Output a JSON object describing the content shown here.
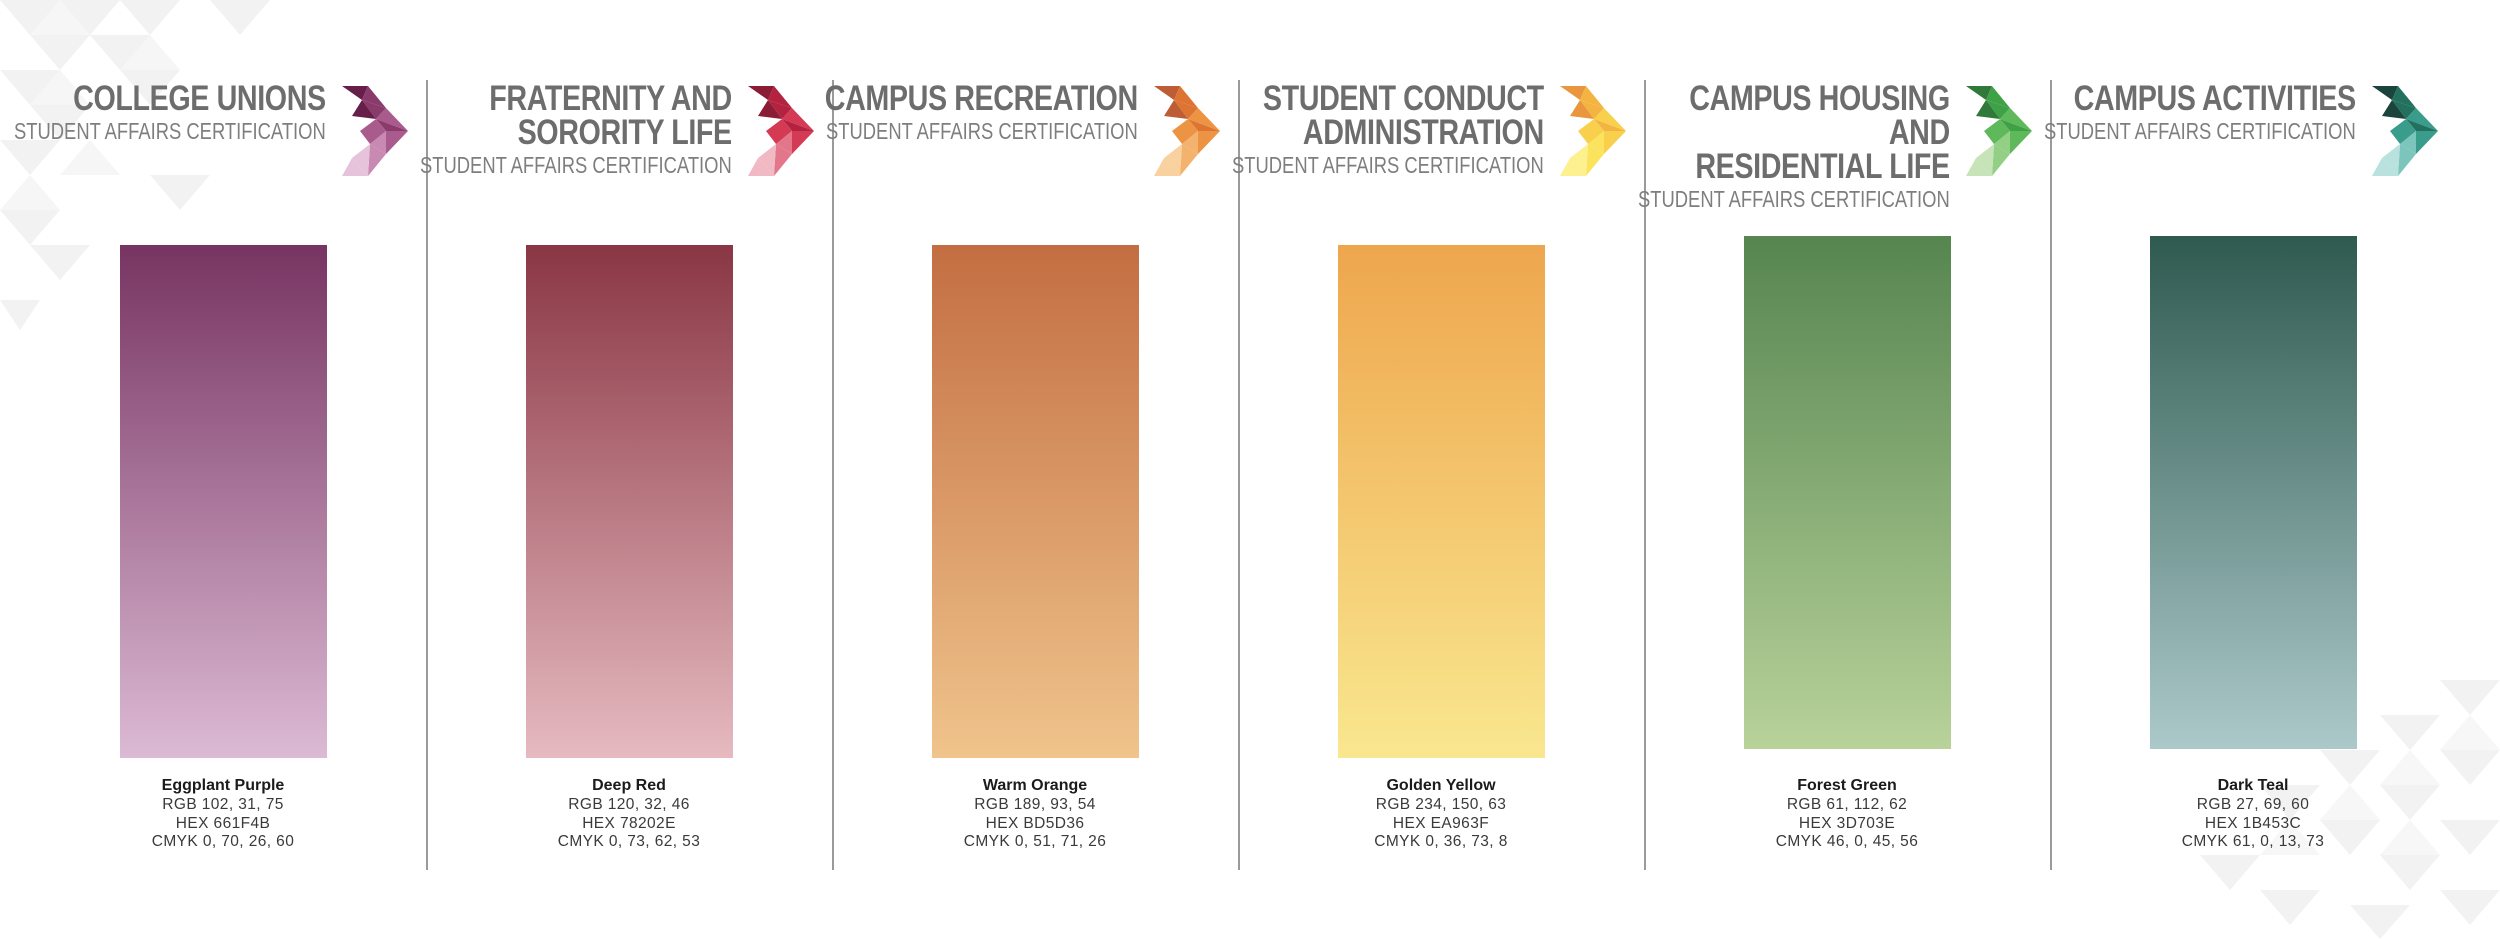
{
  "panels": [
    {
      "title": "COLLEGE UNIONS",
      "subtitle": "STUDENT AFFAIRS CERTIFICATION",
      "chevron_colors": [
        "#661f4b",
        "#8a3a6b",
        "#a85b8c",
        "#c889b2",
        "#e7c3db"
      ],
      "gradient": [
        "#773462",
        "#dcbad4"
      ],
      "color_name": "Eggplant Purple",
      "rgb": "RGB 102, 31, 75",
      "hex": "HEX 661F4B",
      "cmyk": "CMYK 0, 70, 26, 60"
    },
    {
      "title": "FRATERNITY AND\nSORORITY LIFE",
      "subtitle": "STUDENT AFFAIRS CERTIFICATION",
      "chevron_colors": [
        "#8a1c35",
        "#b3223f",
        "#d53a55",
        "#e3768a",
        "#f1b9c3"
      ],
      "gradient": [
        "#8a3644",
        "#e6bac0"
      ],
      "color_name": "Deep Red",
      "rgb": "RGB 120, 32, 46",
      "hex": "HEX 78202E",
      "cmyk": "CMYK 0, 73, 62, 53"
    },
    {
      "title": "CAMPUS RECREATION",
      "subtitle": "STUDENT AFFAIRS CERTIFICATION",
      "chevron_colors": [
        "#bd5d36",
        "#de7431",
        "#ec9443",
        "#f3b36e",
        "#f8d19e"
      ],
      "gradient": [
        "#c36e42",
        "#f0c48c"
      ],
      "color_name": "Warm Orange",
      "rgb": "RGB 189, 93, 54",
      "hex": "HEX BD5D36",
      "cmyk": "CMYK 0, 51, 71, 26"
    },
    {
      "title": "STUDENT CONDUCT\nADMINISTRATION",
      "subtitle": "STUDENT AFFAIRS CERTIFICATION",
      "chevron_colors": [
        "#e9963f",
        "#f3b441",
        "#f8d04b",
        "#fbe35e",
        "#fdf08e"
      ],
      "gradient": [
        "#eea64d",
        "#f9e78f"
      ],
      "color_name": "Golden Yellow",
      "rgb": "RGB 234, 150, 63",
      "hex": "HEX EA963F",
      "cmyk": "CMYK 0, 36, 73, 8"
    },
    {
      "title": "CAMPUS HOUSING AND\nRESIDENTIAL LIFE",
      "subtitle": "STUDENT AFFAIRS CERTIFICATION",
      "chevron_colors": [
        "#2f7a3a",
        "#3fa146",
        "#5fb85a",
        "#94cf86",
        "#c6e4b8"
      ],
      "gradient": [
        "#568550",
        "#b8d29a"
      ],
      "color_name": "Forest Green",
      "rgb": "RGB 61, 112, 62",
      "hex": "HEX 3D703E",
      "cmyk": "CMYK 46, 0, 45, 56"
    },
    {
      "title": "CAMPUS ACTIVITIES",
      "subtitle": "STUDENT AFFAIRS CERTIFICATION",
      "chevron_colors": [
        "#1b453c",
        "#23705f",
        "#3a9c8b",
        "#7cc5bd",
        "#b9e1dd"
      ],
      "gradient": [
        "#2f5a50",
        "#acc9ca"
      ],
      "color_name": "Dark Teal",
      "rgb": "RGB 27, 69, 60",
      "hex": "HEX 1B453C",
      "cmyk": "CMYK 61, 0, 13, 73"
    }
  ]
}
